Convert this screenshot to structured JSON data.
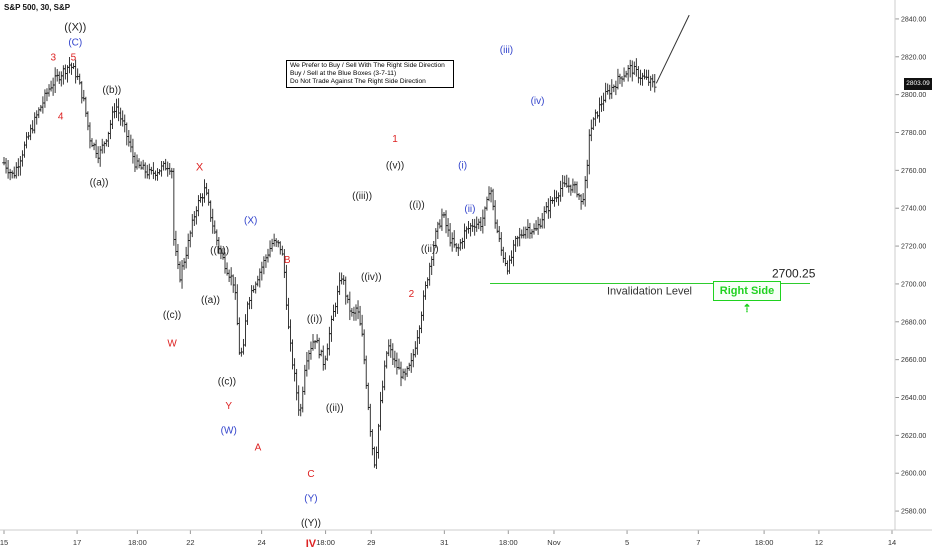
{
  "chart_data": {
    "type": "candlestick-ohlc",
    "symbol_title": "S&P 500, 30, S&P",
    "timeframe": "30",
    "ylim": [
      2570,
      2850
    ],
    "y_ticks": [
      2580,
      2600,
      2620,
      2640,
      2660,
      2680,
      2700,
      2720,
      2740,
      2760,
      2780,
      2800,
      2820,
      2840
    ],
    "last_price": "2803.09",
    "x_ticks": [
      {
        "label": "15",
        "x": 0
      },
      {
        "label": "17",
        "x": 40
      },
      {
        "label": "18:00",
        "x": 73
      },
      {
        "label": "22",
        "x": 102
      },
      {
        "label": "24",
        "x": 141
      },
      {
        "label": "18:00",
        "x": 176
      },
      {
        "label": "29",
        "x": 201
      },
      {
        "label": "31",
        "x": 241
      },
      {
        "label": "18:00",
        "x": 276
      },
      {
        "label": "Nov",
        "x": 301
      },
      {
        "label": "5",
        "x": 341
      },
      {
        "label": "7",
        "x": 380
      },
      {
        "label": "18:00",
        "x": 416
      },
      {
        "label": "12",
        "x": 446
      },
      {
        "label": "14",
        "x": 486
      }
    ],
    "anchors": [
      [
        0,
        2764
      ],
      [
        5,
        2757
      ],
      [
        11,
        2772
      ],
      [
        18,
        2789
      ],
      [
        25,
        2804
      ],
      [
        30,
        2810
      ],
      [
        36,
        2816
      ],
      [
        40,
        2810
      ],
      [
        44,
        2795
      ],
      [
        47,
        2777
      ],
      [
        52,
        2768
      ],
      [
        57,
        2780
      ],
      [
        61,
        2795
      ],
      [
        66,
        2782
      ],
      [
        72,
        2763
      ],
      [
        80,
        2758
      ],
      [
        90,
        2763
      ],
      [
        92,
        2760
      ],
      [
        93,
        2722
      ],
      [
        96,
        2703
      ],
      [
        100,
        2718
      ],
      [
        105,
        2740
      ],
      [
        110,
        2750
      ],
      [
        115,
        2728
      ],
      [
        119,
        2715
      ],
      [
        123,
        2706
      ],
      [
        126,
        2700
      ],
      [
        129,
        2662
      ],
      [
        131,
        2665
      ],
      [
        133,
        2690
      ],
      [
        137,
        2700
      ],
      [
        142,
        2711
      ],
      [
        147,
        2722
      ],
      [
        151,
        2720
      ],
      [
        153,
        2712
      ],
      [
        156,
        2672
      ],
      [
        160,
        2644
      ],
      [
        162,
        2630
      ],
      [
        165,
        2660
      ],
      [
        170,
        2672
      ],
      [
        175,
        2658
      ],
      [
        181,
        2688
      ],
      [
        185,
        2705
      ],
      [
        188,
        2690
      ],
      [
        191,
        2682
      ],
      [
        193,
        2688
      ],
      [
        196,
        2672
      ],
      [
        199,
        2640
      ],
      [
        201,
        2618
      ],
      [
        203,
        2604
      ],
      [
        206,
        2636
      ],
      [
        210,
        2668
      ],
      [
        214,
        2658
      ],
      [
        219,
        2650
      ],
      [
        223,
        2658
      ],
      [
        227,
        2677
      ],
      [
        232,
        2705
      ],
      [
        236,
        2725
      ],
      [
        240,
        2737
      ],
      [
        244,
        2724
      ],
      [
        248,
        2717
      ],
      [
        252,
        2727
      ],
      [
        257,
        2732
      ],
      [
        261,
        2732
      ],
      [
        264,
        2740
      ],
      [
        266,
        2754
      ],
      [
        268,
        2737
      ],
      [
        272,
        2718
      ],
      [
        276,
        2708
      ],
      [
        280,
        2722
      ],
      [
        286,
        2730
      ],
      [
        291,
        2728
      ],
      [
        295,
        2736
      ],
      [
        300,
        2744
      ],
      [
        305,
        2751
      ],
      [
        310,
        2752
      ],
      [
        314,
        2749
      ],
      [
        316,
        2742
      ],
      [
        318,
        2752
      ],
      [
        319,
        2756
      ],
      [
        320,
        2779
      ],
      [
        324,
        2789
      ],
      [
        328,
        2798
      ],
      [
        333,
        2804
      ],
      [
        338,
        2810
      ],
      [
        343,
        2814
      ],
      [
        348,
        2810
      ],
      [
        353,
        2807
      ],
      [
        357,
        2804
      ]
    ],
    "projection": [
      [
        357,
        2806
      ],
      [
        375,
        2842
      ]
    ],
    "invalidation_level": 2700.25,
    "invalidation_start_x": 266,
    "wave_labels": [
      {
        "text": "((X))",
        "x": 39,
        "y": 2834,
        "color": "#222222",
        "size": 11
      },
      {
        "text": "(C)",
        "x": 39,
        "y": 2826,
        "color": "#3344cc",
        "size": 10
      },
      {
        "text": "3",
        "x": 27,
        "y": 2818,
        "color": "#dd2222",
        "size": 10
      },
      {
        "text": "5",
        "x": 38,
        "y": 2818,
        "color": "#dd2222",
        "size": 10
      },
      {
        "text": "4",
        "x": 31,
        "y": 2787,
        "color": "#dd2222",
        "size": 10
      },
      {
        "text": "((b))",
        "x": 59,
        "y": 2801,
        "color": "#222222",
        "size": 10
      },
      {
        "text": "((a))",
        "x": 52,
        "y": 2752,
        "color": "#222222",
        "size": 10
      },
      {
        "text": "X",
        "x": 107,
        "y": 2760,
        "color": "#dd2222",
        "size": 11
      },
      {
        "text": "((b))",
        "x": 118,
        "y": 2716,
        "color": "#222222",
        "size": 10
      },
      {
        "text": "((a))",
        "x": 113,
        "y": 2690,
        "color": "#222222",
        "size": 10
      },
      {
        "text": "((c))",
        "x": 92,
        "y": 2682,
        "color": "#222222",
        "size": 10
      },
      {
        "text": "W",
        "x": 92,
        "y": 2667,
        "color": "#dd2222",
        "size": 10
      },
      {
        "text": "(X)",
        "x": 135,
        "y": 2732,
        "color": "#3344cc",
        "size": 10
      },
      {
        "text": "((c))",
        "x": 122,
        "y": 2647,
        "color": "#222222",
        "size": 10
      },
      {
        "text": "Y",
        "x": 123,
        "y": 2634,
        "color": "#dd2222",
        "size": 10
      },
      {
        "text": "(W)",
        "x": 123,
        "y": 2621,
        "color": "#3344cc",
        "size": 10
      },
      {
        "text": "B",
        "x": 155,
        "y": 2711,
        "color": "#dd2222",
        "size": 10
      },
      {
        "text": "A",
        "x": 139,
        "y": 2612,
        "color": "#dd2222",
        "size": 10
      },
      {
        "text": "((i))",
        "x": 170,
        "y": 2680,
        "color": "#222222",
        "size": 10
      },
      {
        "text": "((ii))",
        "x": 181,
        "y": 2633,
        "color": "#222222",
        "size": 10
      },
      {
        "text": "C",
        "x": 168,
        "y": 2598,
        "color": "#dd2222",
        "size": 10
      },
      {
        "text": "(Y)",
        "x": 168,
        "y": 2585,
        "color": "#3344cc",
        "size": 10
      },
      {
        "text": "((Y))",
        "x": 168,
        "y": 2572,
        "color": "#222222",
        "size": 10
      },
      {
        "text": "IV",
        "x": 168,
        "y": 2561,
        "color": "#dd2222",
        "size": 11
      },
      {
        "text": "1",
        "x": 214,
        "y": 2775,
        "color": "#dd2222",
        "size": 10
      },
      {
        "text": "((v))",
        "x": 214,
        "y": 2761,
        "color": "#222222",
        "size": 10
      },
      {
        "text": "((iii))",
        "x": 196,
        "y": 2745,
        "color": "#222222",
        "size": 10
      },
      {
        "text": "((iv))",
        "x": 201,
        "y": 2702,
        "color": "#222222",
        "size": 10
      },
      {
        "text": "((i))",
        "x": 226,
        "y": 2740,
        "color": "#222222",
        "size": 10
      },
      {
        "text": "((ii))",
        "x": 233,
        "y": 2717,
        "color": "#222222",
        "size": 10
      },
      {
        "text": "2",
        "x": 223,
        "y": 2693,
        "color": "#dd2222",
        "size": 10
      },
      {
        "text": "(i)",
        "x": 251,
        "y": 2761,
        "color": "#3344cc",
        "size": 10
      },
      {
        "text": "(ii)",
        "x": 255,
        "y": 2738,
        "color": "#3344cc",
        "size": 10
      },
      {
        "text": "(iii)",
        "x": 275,
        "y": 2822,
        "color": "#3344cc",
        "size": 10
      },
      {
        "text": "(iv)",
        "x": 292,
        "y": 2795,
        "color": "#3344cc",
        "size": 10
      }
    ],
    "invalidation_label": "Invalidation Level",
    "invalidation_value_label": "2700.25"
  },
  "note_box": {
    "line1": "We Prefer to Buy / Sell With The Right Side Direction",
    "line2": "Buy / Sell at the Blue Boxes (3-7-11)",
    "line3": "Do Not Trade Against The Right Side Direction"
  },
  "right_side_label": "Right Side",
  "colors": {
    "bars": "#222222",
    "invalidation_line": "#2ecc2e",
    "right_side": "#1fd21f",
    "wave_red": "#dd2222",
    "wave_blue": "#3344cc"
  },
  "icons": {
    "right_side_arrow": "arrow-up-icon"
  }
}
